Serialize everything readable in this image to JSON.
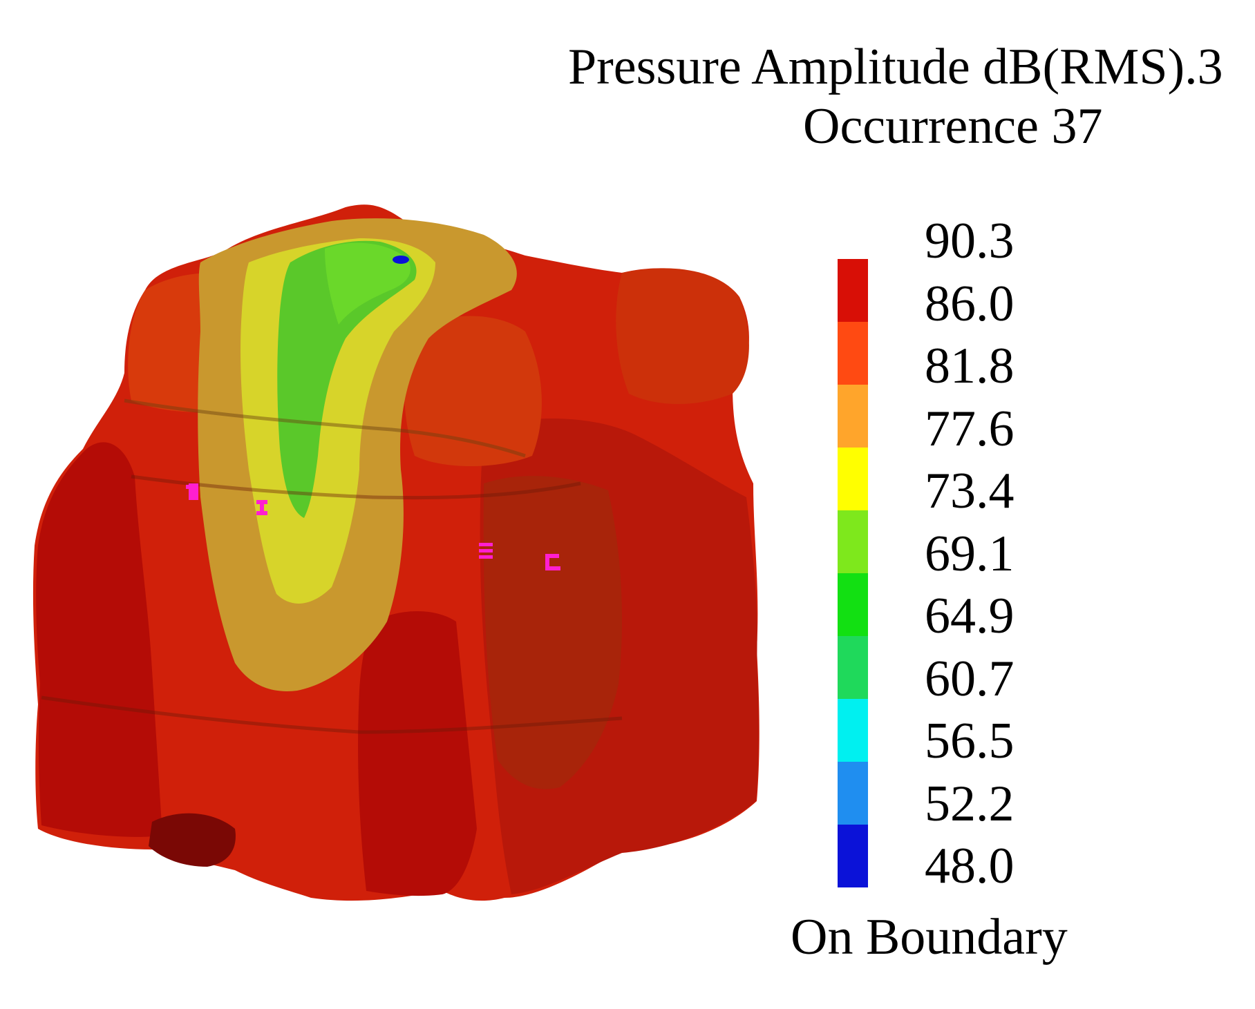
{
  "title": {
    "line1": "Pressure Amplitude dB(RMS).3",
    "line2": "Occurrence 37"
  },
  "legend": {
    "tick_labels": [
      "90.3",
      "86.0",
      "81.8",
      "77.6",
      "73.4",
      "69.1",
      "64.9",
      "60.7",
      "56.5",
      "52.2",
      "48.0"
    ],
    "band_colors": [
      "#d80f06",
      "#ff4a12",
      "#ffa52b",
      "#ffff00",
      "#7ee81c",
      "#12e012",
      "#1fd95b",
      "#00f0f0",
      "#1f8ef0",
      "#0b12d8"
    ],
    "footer": "On Boundary"
  },
  "model": {
    "colors": {
      "dark_red": "#b40c06",
      "red": "#d0200a",
      "orange_red": "#e04510",
      "orange": "#c9982e",
      "yellow": "#d7d42a",
      "green": "#5ac82a",
      "blue": "#0b12d8",
      "marker": "#ff1fd0"
    },
    "markers": [
      "sensor-marker-1",
      "sensor-marker-2",
      "sensor-marker-3",
      "sensor-marker-4"
    ]
  }
}
